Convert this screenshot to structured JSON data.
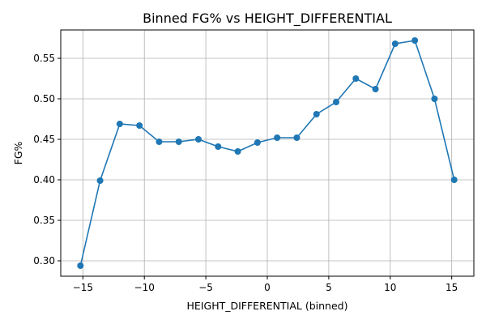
{
  "chart_data": {
    "type": "line",
    "title": "Binned FG% vs HEIGHT_DIFFERENTIAL",
    "xlabel": "HEIGHT_DIFFERENTIAL (binned)",
    "ylabel": "FG%",
    "xlim": [
      -16.8,
      16.8
    ],
    "ylim": [
      0.281,
      0.585
    ],
    "xticks": [
      -15,
      -10,
      -5,
      0,
      5,
      10,
      15
    ],
    "xtick_labels": [
      "−15",
      "−10",
      "−5",
      "0",
      "5",
      "10",
      "15"
    ],
    "yticks": [
      0.3,
      0.35,
      0.4,
      0.45,
      0.5,
      0.55
    ],
    "ytick_labels": [
      "0.30",
      "0.35",
      "0.40",
      "0.45",
      "0.50",
      "0.55"
    ],
    "grid": true,
    "color": "#1f77b4",
    "series": [
      {
        "marker": "circle",
        "x": [
          -15.2,
          -13.6,
          -12.0,
          -10.4,
          -8.8,
          -7.2,
          -5.6,
          -4.0,
          -2.4,
          -0.8,
          0.8,
          2.4,
          4.0,
          5.6,
          7.2,
          8.8,
          10.4,
          12.0,
          13.6,
          15.2
        ],
        "y": [
          0.294,
          0.399,
          0.469,
          0.467,
          0.447,
          0.447,
          0.45,
          0.441,
          0.435,
          0.446,
          0.452,
          0.452,
          0.481,
          0.496,
          0.525,
          0.512,
          0.568,
          0.572,
          0.5,
          0.4
        ]
      }
    ]
  }
}
